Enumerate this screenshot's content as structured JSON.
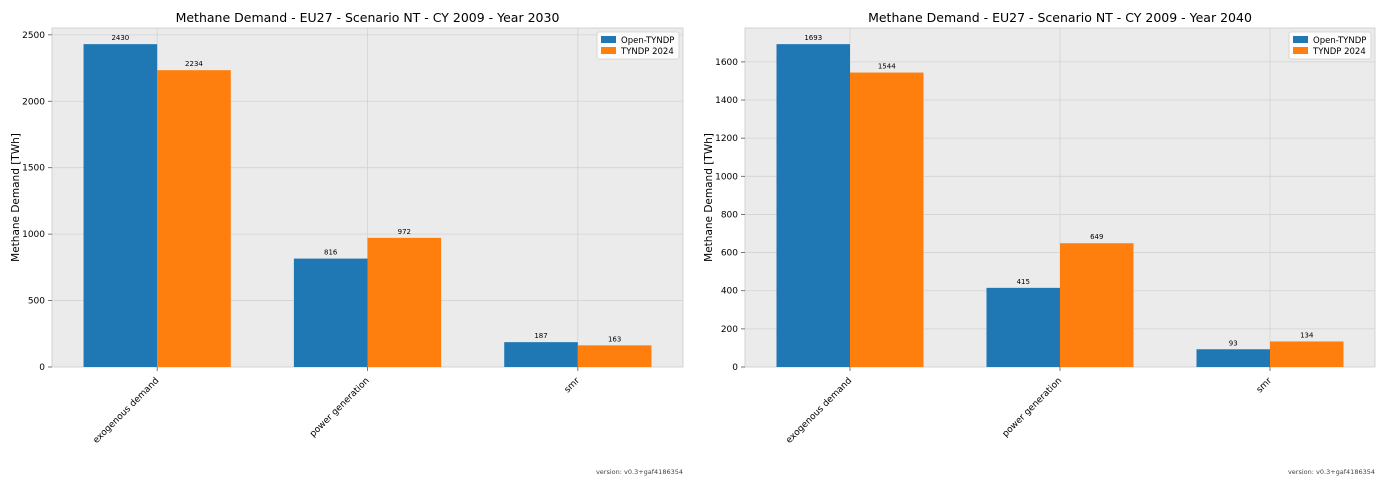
{
  "chart_data": [
    {
      "type": "bar",
      "title": "Methane Demand - EU27 - Scenario NT - CY 2009 - Year 2030",
      "ylabel": "Methane Demand [TWh]",
      "xlabel": "",
      "categories": [
        "exogenous demand",
        "power generation",
        "smr"
      ],
      "series": [
        {
          "name": "Open-TYNDP",
          "values": [
            2430,
            816,
            187
          ],
          "color": "#1f77b4"
        },
        {
          "name": "TYNDP 2024",
          "values": [
            2234,
            972,
            163
          ],
          "color": "#ff7f0e"
        }
      ],
      "ylim": [
        0,
        2551.5
      ],
      "yticks": [
        0,
        500,
        1000,
        1500,
        2000,
        2500
      ],
      "legend": "top-right",
      "footnote": "version: v0.3+gaf4186354"
    },
    {
      "type": "bar",
      "title": "Methane Demand - EU27 - Scenario NT - CY 2009 - Year 2040",
      "ylabel": "Methane Demand [TWh]",
      "xlabel": "",
      "categories": [
        "exogenous demand",
        "power generation",
        "smr"
      ],
      "series": [
        {
          "name": "Open-TYNDP",
          "values": [
            1693,
            415,
            93
          ],
          "color": "#1f77b4"
        },
        {
          "name": "TYNDP 2024",
          "values": [
            1544,
            649,
            134
          ],
          "color": "#ff7f0e"
        }
      ],
      "ylim": [
        0,
        1777.65
      ],
      "yticks": [
        0,
        200,
        400,
        600,
        800,
        1000,
        1200,
        1400,
        1600
      ],
      "legend": "top-right",
      "footnote": "version: v0.3+gaf4186354"
    }
  ]
}
